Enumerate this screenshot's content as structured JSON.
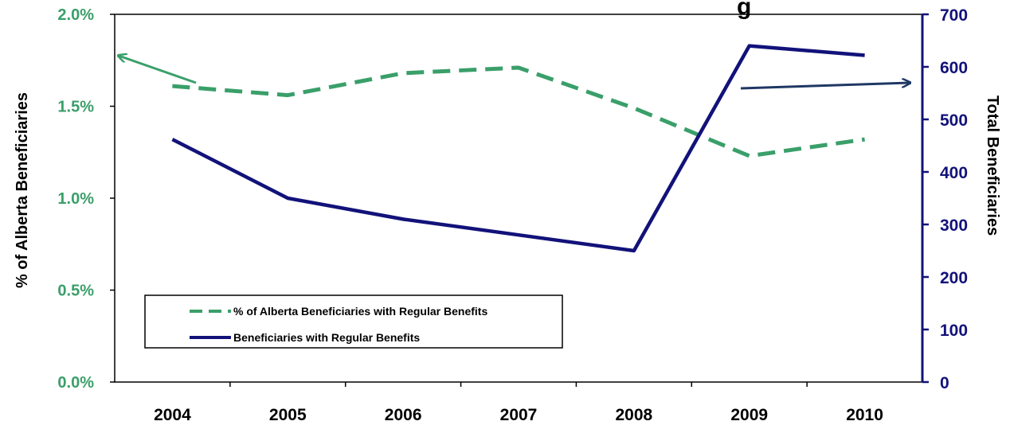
{
  "chart_data": {
    "type": "line",
    "title": "g",
    "categories": [
      "2004",
      "2005",
      "2006",
      "2007",
      "2008",
      "2009",
      "2010"
    ],
    "left_axis": {
      "label": "% of Alberta Beneficiaries",
      "ticks": [
        "0.0%",
        "0.5%",
        "1.0%",
        "1.5%",
        "2.0%"
      ],
      "tick_values": [
        0,
        0.5,
        1.0,
        1.5,
        2.0
      ],
      "range": [
        0,
        2.0
      ],
      "color": "#3a9f6a"
    },
    "right_axis": {
      "label": "Total Beneficiaries",
      "ticks": [
        "0",
        "100",
        "200",
        "300",
        "400",
        "500",
        "600",
        "700"
      ],
      "tick_values": [
        0,
        100,
        200,
        300,
        400,
        500,
        600,
        700
      ],
      "range": [
        0,
        700
      ],
      "color": "#12127a"
    },
    "series": [
      {
        "name": "% of Alberta Beneficiaries with Regular Benefits",
        "axis": "left",
        "style": "dashed",
        "color": "#3a9f6a",
        "values": [
          1.61,
          1.56,
          1.68,
          1.71,
          1.49,
          1.23,
          1.32
        ]
      },
      {
        "name": "Beneficiaries with Regular Benefits",
        "axis": "right",
        "style": "solid",
        "color": "#12127a",
        "values": [
          462,
          350,
          310,
          280,
          250,
          640,
          622
        ]
      }
    ],
    "legend_position": "bottom-left",
    "grid": false,
    "annotations": [
      {
        "type": "arrow",
        "points_to": "left-axis",
        "color": "#3a9f6a"
      },
      {
        "type": "arrow",
        "points_to": "right-axis",
        "color": "#1f3864"
      }
    ]
  }
}
